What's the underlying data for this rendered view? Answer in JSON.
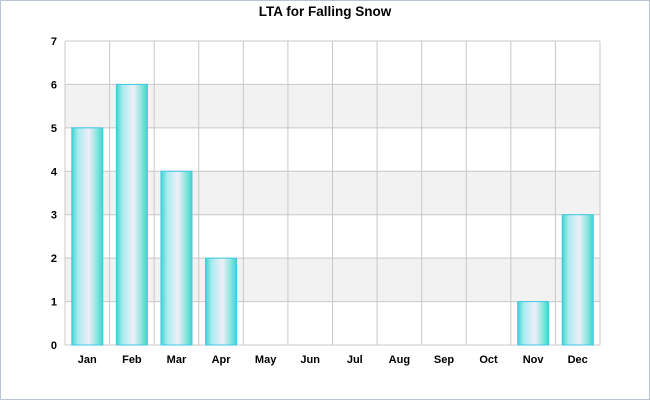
{
  "chart_data": {
    "type": "bar",
    "title": "LTA for Falling Snow",
    "xlabel": "",
    "ylabel": "",
    "categories": [
      "Jan",
      "Feb",
      "Mar",
      "Apr",
      "May",
      "Jun",
      "Jul",
      "Aug",
      "Sep",
      "Oct",
      "Nov",
      "Dec"
    ],
    "values": [
      5,
      6,
      4,
      2,
      0,
      0,
      0,
      0,
      0,
      0,
      1,
      3
    ],
    "ylim": [
      0,
      7
    ],
    "yticks": [
      0,
      1,
      2,
      3,
      4,
      5,
      6,
      7
    ],
    "grid": true,
    "colors": {
      "bar_edge": "#3fc7e6",
      "bar_light": "#eaf0f8",
      "bar_dark": "#3fd6cb",
      "band": "#f2f2f2",
      "gridline": "#c8c8c8"
    }
  }
}
